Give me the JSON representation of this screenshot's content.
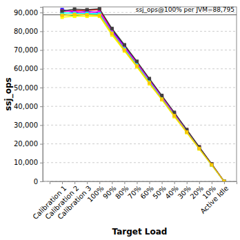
{
  "chart_data": {
    "type": "line",
    "x_label": "Target Load",
    "y_label": "ssj_ops",
    "categories": [
      "Calibration 1",
      "Calibration 2",
      "Calibration 3",
      "100%",
      "90%",
      "80%",
      "70%",
      "60%",
      "50%",
      "40%",
      "30%",
      "20%",
      "10%",
      "Active Idle"
    ],
    "series": [
      {
        "color": "#ff0000",
        "values": [
          90500,
          91000,
          91200,
          91500,
          81000,
          72500,
          63500,
          54500,
          45500,
          36500,
          27500,
          18300,
          9200,
          0
        ]
      },
      {
        "color": "#0000ff",
        "values": [
          91500,
          90000,
          90500,
          90000,
          80500,
          72000,
          63000,
          54000,
          45000,
          36000,
          27000,
          18000,
          9000,
          0
        ]
      },
      {
        "color": "#00cc00",
        "values": [
          89000,
          88500,
          89000,
          89000,
          79500,
          71000,
          62500,
          53500,
          44500,
          35500,
          26800,
          17800,
          8900,
          0
        ]
      },
      {
        "color": "#ffff00",
        "values": [
          87500,
          88000,
          88000,
          88000,
          78000,
          69500,
          61000,
          52000,
          43500,
          34500,
          26000,
          17300,
          8700,
          0
        ]
      },
      {
        "color": "#ff00ff",
        "values": [
          91000,
          90500,
          90000,
          90500,
          80000,
          71500,
          63000,
          53800,
          45000,
          36200,
          27200,
          18100,
          9100,
          0
        ]
      },
      {
        "color": "#00ffff",
        "values": [
          90000,
          89500,
          89500,
          89200,
          79000,
          70500,
          62000,
          53000,
          44000,
          35200,
          26500,
          17600,
          8800,
          0
        ]
      },
      {
        "color": "#404040",
        "values": [
          90800,
          91800,
          91500,
          92000,
          81500,
          72800,
          64000,
          54800,
          45800,
          36800,
          27600,
          18400,
          9300,
          0
        ]
      },
      {
        "color": "#ffc800",
        "values": [
          88500,
          89000,
          88800,
          88500,
          78800,
          70000,
          61500,
          52500,
          43800,
          35000,
          26300,
          17500,
          8800,
          0
        ]
      }
    ],
    "marker": "square",
    "ylim": [
      0,
      93000
    ],
    "yticks": [
      0,
      {
        "value": 10000,
        "label": "10,000"
      },
      {
        "value": 20000,
        "label": "20,000"
      },
      {
        "value": 30000,
        "label": "30,000"
      },
      {
        "value": 40000,
        "label": "40,000"
      },
      {
        "value": 50000,
        "label": "50,000"
      },
      {
        "value": 60000,
        "label": "60,000"
      },
      {
        "value": 70000,
        "label": "70,000"
      },
      {
        "value": 80000,
        "label": "80,000"
      },
      {
        "value": 90000,
        "label": "90,000"
      }
    ],
    "grid": true,
    "reference": {
      "value": 88795,
      "label": "ssj_ops@100% per JVM=88,795"
    }
  }
}
